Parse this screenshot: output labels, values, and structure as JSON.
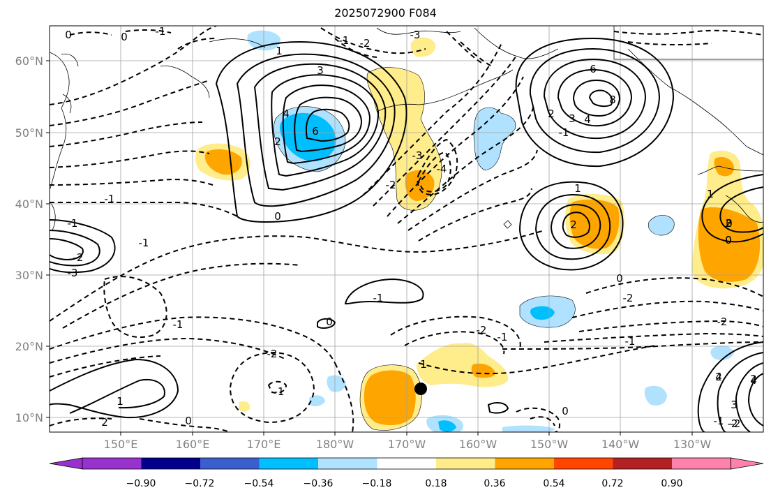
{
  "title": "2025072900 F084",
  "map": {
    "lon_labels": [
      "150°E",
      "160°E",
      "170°E",
      "180°W",
      "170°W",
      "160°W",
      "150°W",
      "140°W",
      "130°W"
    ],
    "lat_labels": [
      "60°N",
      "50°N",
      "40°N",
      "30°N",
      "20°N",
      "10°N"
    ],
    "contour_labels": [
      "0",
      "0",
      "-1",
      "-1",
      "-2",
      "-3",
      "1",
      "3",
      "4",
      "6",
      "2",
      "0",
      "1",
      "2",
      "3",
      "4",
      "-1",
      "-2",
      "-3",
      "-4",
      "6",
      "8",
      "3",
      "4",
      "2",
      "1",
      "0",
      "-1",
      "-2",
      "-3",
      "1",
      "2",
      "-1",
      "0",
      "-1",
      "-2",
      "0",
      "-1",
      "0",
      "-2",
      "-1",
      "1",
      "-2",
      "-1",
      "0",
      "-2",
      "-1",
      "1",
      "0",
      "0",
      "-1",
      "0",
      "2",
      "0",
      "2",
      "-2",
      "-1",
      "2",
      "4",
      "3",
      "-2"
    ],
    "station_marker": "black-dot"
  },
  "colorbar": {
    "tick_labels": [
      "−0.90",
      "−0.72",
      "−0.54",
      "−0.36",
      "−0.18",
      "0.18",
      "0.36",
      "0.54",
      "0.72",
      "0.90"
    ],
    "colors": [
      "#9932cc",
      "#00008b",
      "#3a5fcd",
      "#00bfff",
      "#b0e2ff",
      "#ffffff",
      "#ffec8b",
      "#ffa500",
      "#ff4500",
      "#b22222",
      "#ff82ab"
    ]
  }
}
